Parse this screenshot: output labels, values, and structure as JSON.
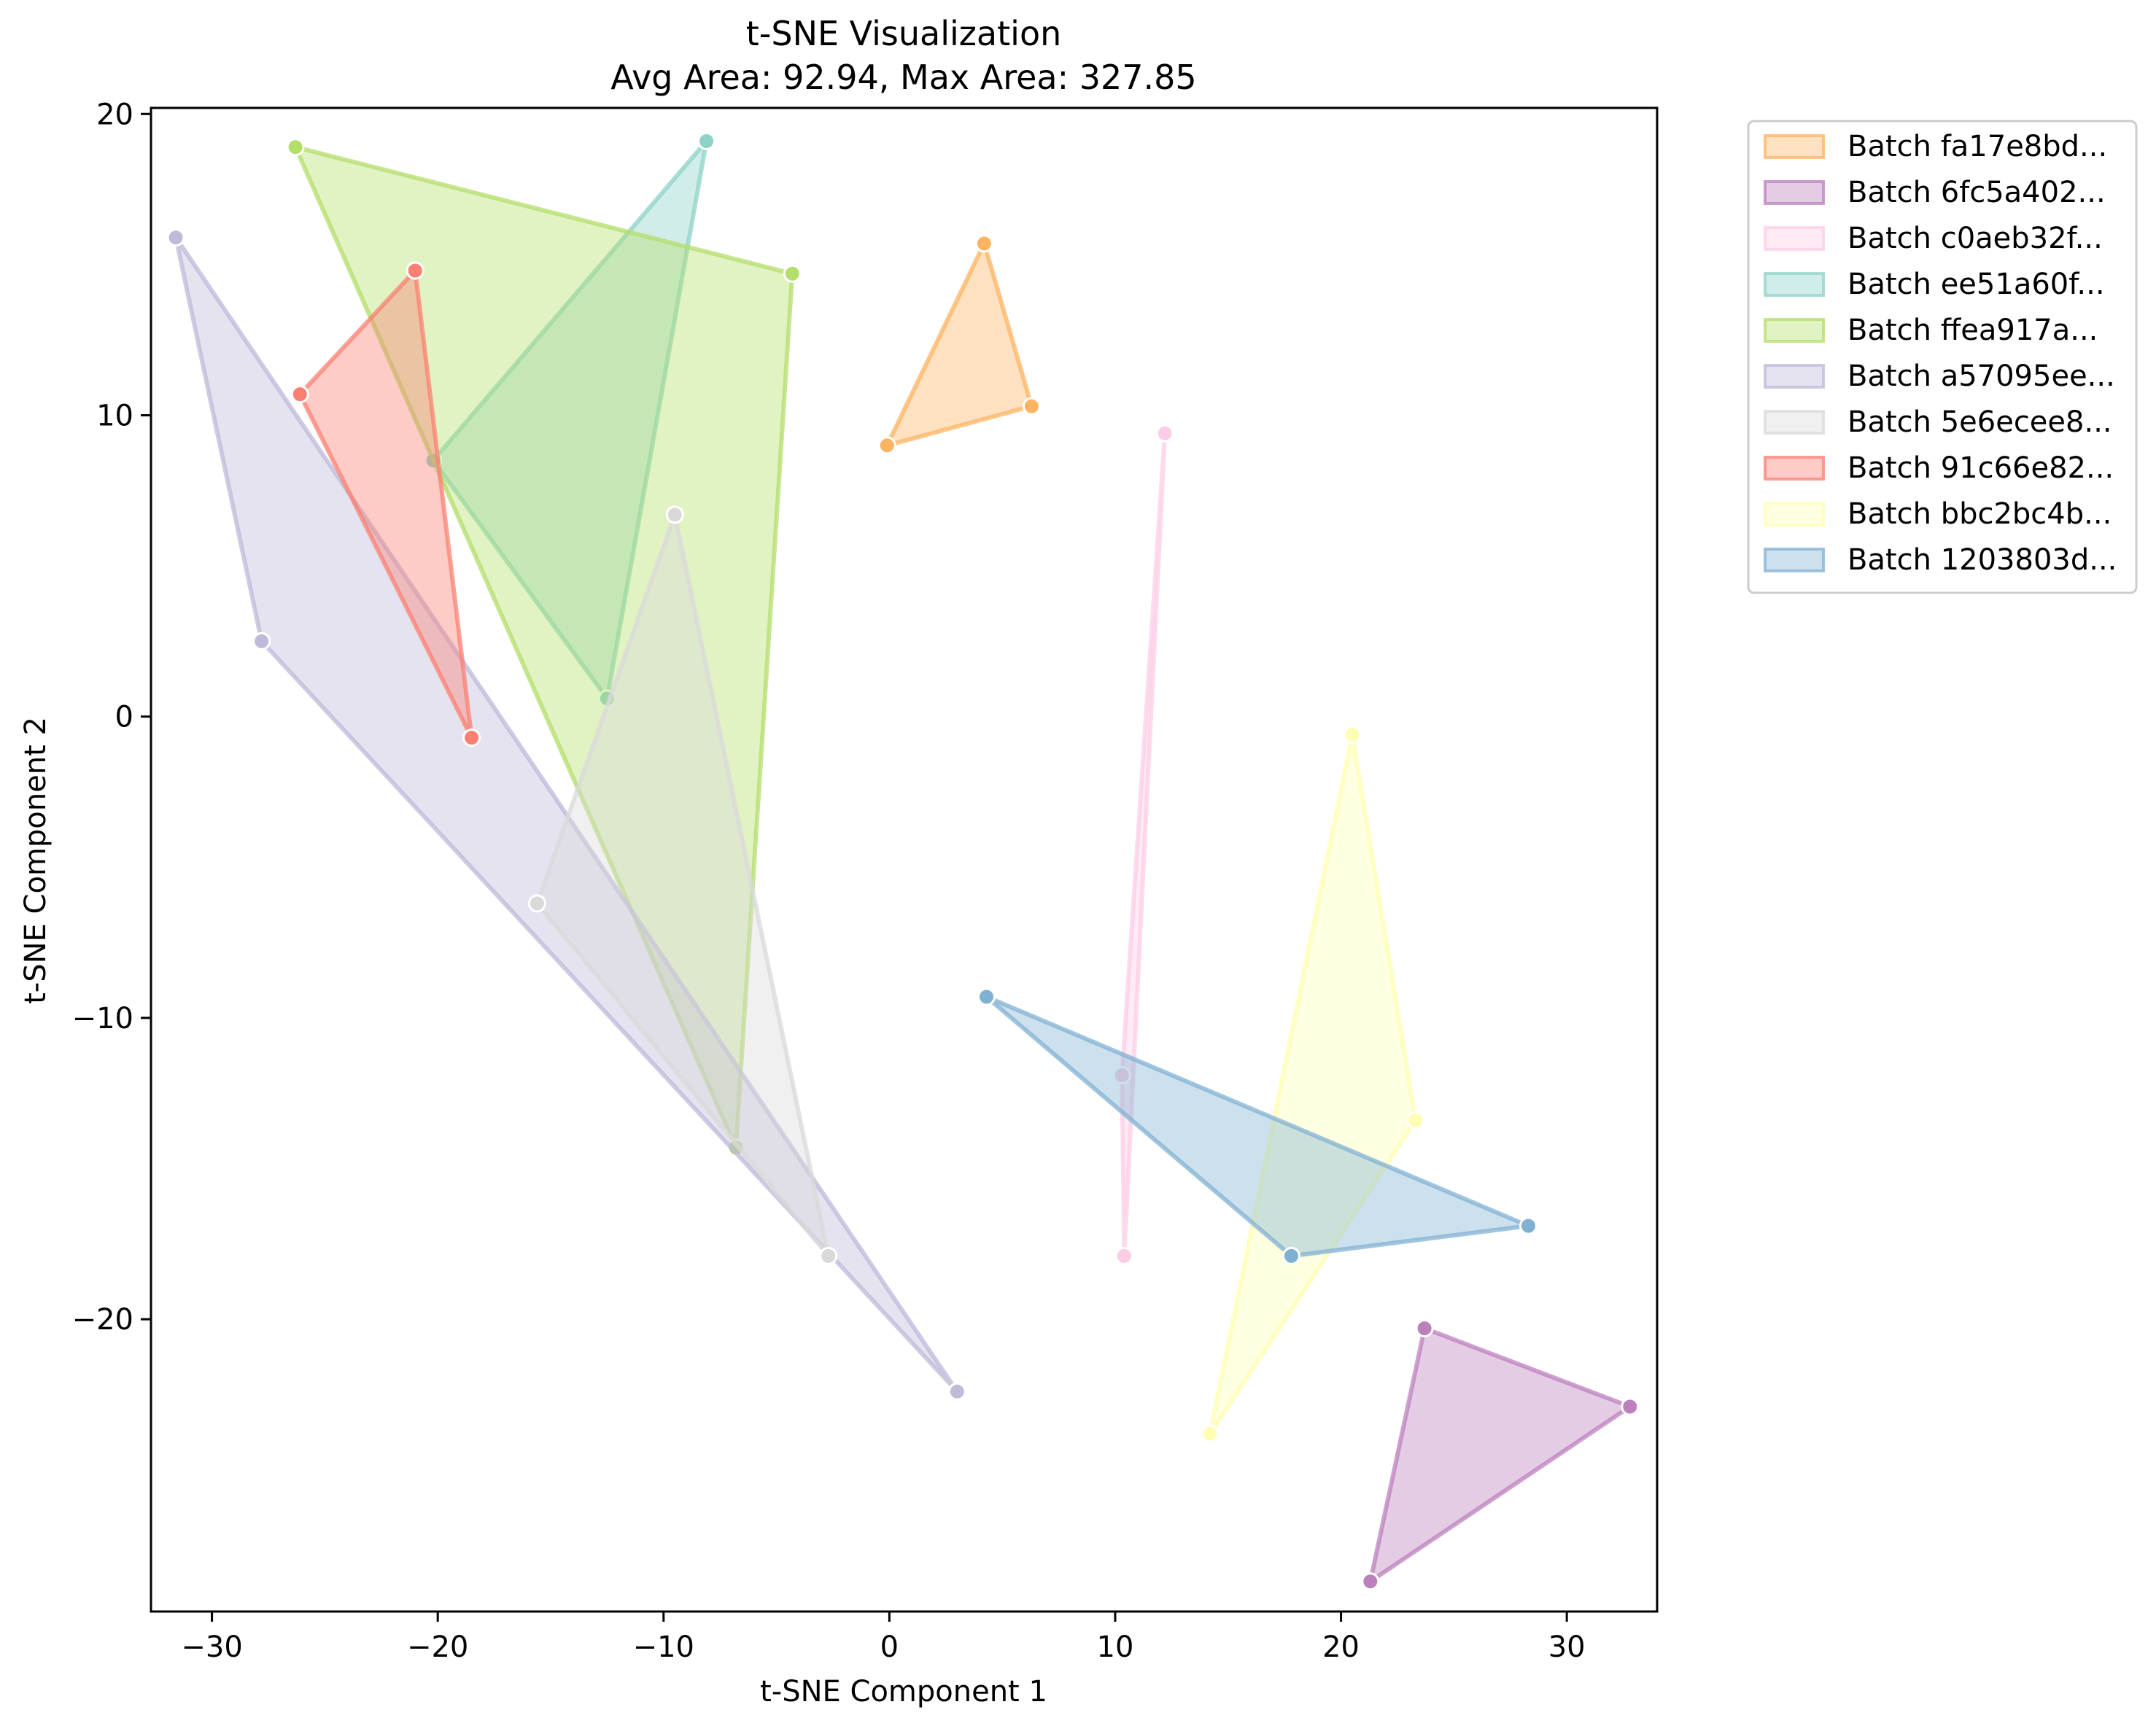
{
  "chart_data": {
    "type": "scatter",
    "title": "t-SNE Visualization",
    "subtitle": "Avg Area: 92.94, Max Area: 327.85",
    "xlabel": "t-SNE Component 1",
    "ylabel": "t-SNE Component 2",
    "xlim": [
      -32.7,
      34.0
    ],
    "ylim": [
      -29.7,
      20.2
    ],
    "xticks": [
      -30,
      -20,
      -10,
      0,
      10,
      20,
      30
    ],
    "yticks": [
      -20,
      -10,
      0,
      10,
      20
    ],
    "xtick_labels": [
      "−30",
      "−20",
      "−10",
      "0",
      "10",
      "20",
      "30"
    ],
    "ytick_labels": [
      "−20",
      "−10",
      "0",
      "10",
      "20"
    ],
    "grid": false,
    "legend_position": "outside-right-top",
    "series": [
      {
        "name": "Batch fa17e8bd...",
        "color": "#fdb462",
        "points": [
          [
            -0.1,
            9.0
          ],
          [
            4.2,
            15.7
          ],
          [
            6.3,
            10.3
          ]
        ]
      },
      {
        "name": "Batch 6fc5a402...",
        "color": "#bc80bd",
        "points": [
          [
            21.3,
            -28.7
          ],
          [
            23.7,
            -20.3
          ],
          [
            32.8,
            -22.9
          ]
        ]
      },
      {
        "name": "Batch c0aeb32f...",
        "color": "#fccde5",
        "points": [
          [
            10.4,
            -17.9
          ],
          [
            10.3,
            -11.9
          ],
          [
            12.2,
            9.4
          ]
        ]
      },
      {
        "name": "Batch ee51a60f...",
        "color": "#8dd3c7",
        "points": [
          [
            -20.2,
            8.5
          ],
          [
            -8.1,
            19.1
          ],
          [
            -12.5,
            0.6
          ]
        ]
      },
      {
        "name": "Batch ffea917a...",
        "color": "#b3de69",
        "points": [
          [
            -26.3,
            18.9
          ],
          [
            -4.3,
            14.7
          ],
          [
            -6.8,
            -14.3
          ]
        ]
      },
      {
        "name": "Batch a57095ee...",
        "color": "#bebada",
        "points": [
          [
            -31.6,
            15.9
          ],
          [
            -27.8,
            2.5
          ],
          [
            3.0,
            -22.4
          ]
        ]
      },
      {
        "name": "Batch 5e6ecee8...",
        "color": "#d9d9d9",
        "points": [
          [
            -15.6,
            -6.2
          ],
          [
            -9.5,
            6.7
          ],
          [
            -2.7,
            -17.9
          ]
        ]
      },
      {
        "name": "Batch 91c66e82...",
        "color": "#fb8072",
        "points": [
          [
            -26.1,
            10.7
          ],
          [
            -21.0,
            14.8
          ],
          [
            -18.5,
            -0.7
          ]
        ]
      },
      {
        "name": "Batch bbc2bc4b...",
        "color": "#ffffb3",
        "points": [
          [
            20.5,
            -0.6
          ],
          [
            23.3,
            -13.4
          ],
          [
            14.2,
            -23.8
          ]
        ]
      },
      {
        "name": "Batch 1203803d...",
        "color": "#80b1d3",
        "points": [
          [
            4.3,
            -9.3
          ],
          [
            28.3,
            -16.9
          ],
          [
            17.8,
            -17.9
          ]
        ]
      }
    ]
  }
}
